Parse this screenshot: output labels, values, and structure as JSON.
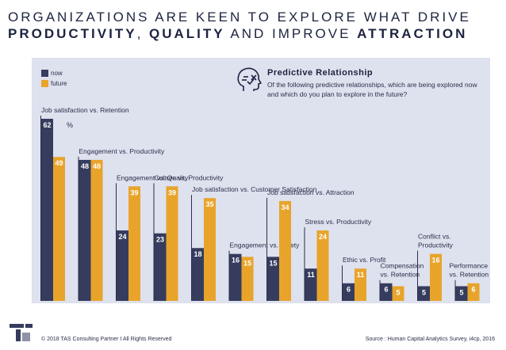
{
  "header": {
    "line1": "ORGANIZATIONS ARE KEEN TO EXPLORE WHAT DRIVE",
    "line2_bold1": "PRODUCTIVITY",
    "line2_sep": ", ",
    "line2_bold2": "QUALITY",
    "line2_mid": " AND IMPROVE ",
    "line2_bold3": "ATTRACTION"
  },
  "callout": {
    "icon": "brain-gear-icon",
    "title": "Predictive Relationship",
    "question": "Of the following predictive relationships, which are being explored now and which do you plan to explore in the future?"
  },
  "chart_data": {
    "type": "bar",
    "ylim": [
      0,
      62
    ],
    "unit_label": "%",
    "series": [
      {
        "name": "now",
        "color": "#353c5e",
        "values": [
          62,
          48,
          24,
          23,
          18,
          16,
          15,
          11,
          6,
          6,
          5,
          5
        ]
      },
      {
        "name": "future",
        "color": "#e8a42a",
        "values": [
          49,
          48,
          39,
          39,
          35,
          15,
          34,
          24,
          11,
          5,
          16,
          6
        ]
      }
    ],
    "categories": [
      [
        "Job satisfaction vs. Retention"
      ],
      [
        "Engagement vs. Productivity"
      ],
      [
        "Engagement vs. Quality"
      ],
      [
        "Culture vs. Productivity"
      ],
      [
        "Job satisfaction vs. Customer Satisfaction"
      ],
      [
        "Engagement vs. Safety"
      ],
      [
        "Job satisfaction vs. Attraction"
      ],
      [
        "Stress vs. Productivity"
      ],
      [
        "Ethic vs. Profit"
      ],
      [
        "Compensation",
        "vs. Retention"
      ],
      [
        "Conflict vs.",
        "Productivity"
      ],
      [
        "Performance",
        "vs. Retention"
      ]
    ]
  },
  "footer": {
    "copyright": "© 2018 TAS Consulting Partner  I  All Rights Reserved",
    "source": "Source : Human Capital Analytics Survey, i4cp, 2016"
  }
}
